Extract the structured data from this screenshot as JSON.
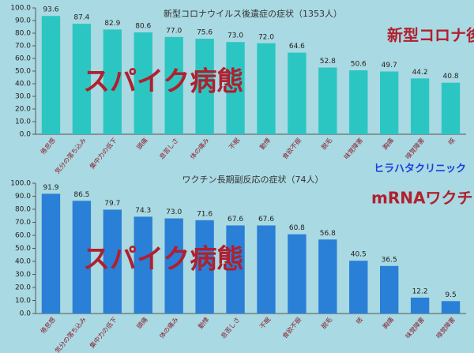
{
  "chart_data": [
    {
      "type": "bar",
      "title": "新型コロナウイルス後遺症の症状（1353人）",
      "categories": [
        "倦怠感",
        "気分の落ち込み",
        "集中力の低下",
        "頭痛",
        "息苦しさ",
        "体の痛み",
        "不眠",
        "動悸",
        "食欲不振",
        "脱毛",
        "味覚障害",
        "胸痛",
        "嗅覚障害",
        "咳"
      ],
      "values": [
        93.6,
        87.4,
        82.9,
        80.6,
        77.0,
        75.6,
        73.0,
        72.0,
        64.6,
        52.8,
        50.6,
        49.7,
        44.2,
        40.8
      ],
      "value_labels": [
        "93.6",
        "87.4",
        "82.9",
        "80.6",
        "77.0",
        "75.6",
        "73.0",
        "72.0",
        "64.6",
        "52.8",
        "50.6",
        "49.7",
        "44.2",
        "40.8"
      ],
      "color": "#2cc6c2",
      "ylim": [
        0,
        100
      ],
      "yticks": [
        {
          "value": 0,
          "label": "0.0"
        },
        {
          "value": 10,
          "label": "10.0"
        },
        {
          "value": 20,
          "label": "20.0"
        },
        {
          "value": 30,
          "label": "30.0"
        },
        {
          "value": 40,
          "label": "40.0"
        },
        {
          "value": 50,
          "label": "50.0"
        },
        {
          "value": 60,
          "label": "60.0"
        },
        {
          "value": 70,
          "label": "70.0"
        },
        {
          "value": 80,
          "label": "80.0"
        },
        {
          "value": 90,
          "label": "90.0"
        },
        {
          "value": 100,
          "label": "100.0"
        }
      ],
      "annotations": [
        "スパイク病態",
        "新型コロナ後遺症"
      ]
    },
    {
      "type": "bar",
      "title": "ワクチン長期副反応の症状（74人）",
      "categories": [
        "倦怠感",
        "気分の落ち込み",
        "集中力の低下",
        "頭痛",
        "体の痛み",
        "動悸",
        "息苦しさ",
        "不眠",
        "食欲不振",
        "脱毛",
        "咳",
        "胸痛",
        "味覚障害",
        "嗅覚障害"
      ],
      "values": [
        91.9,
        86.5,
        79.7,
        74.3,
        73.0,
        71.6,
        67.6,
        67.6,
        60.8,
        56.8,
        40.5,
        36.5,
        12.2,
        9.5
      ],
      "value_labels": [
        "91.9",
        "86.5",
        "79.7",
        "74.3",
        "73.0",
        "71.6",
        "67.6",
        "67.6",
        "60.8",
        "56.8",
        "40.5",
        "36.5",
        "12.2",
        "9.5"
      ],
      "color": "#2a7fd6",
      "ylim": [
        0,
        100
      ],
      "yticks": [
        {
          "value": 0,
          "label": "0.0"
        },
        {
          "value": 10,
          "label": "10.0"
        },
        {
          "value": 20,
          "label": "20.0"
        },
        {
          "value": 30,
          "label": "30.0"
        },
        {
          "value": 40,
          "label": "40.0"
        },
        {
          "value": 50,
          "label": "50.0"
        },
        {
          "value": 60,
          "label": "60.0"
        },
        {
          "value": 70,
          "label": "70.0"
        },
        {
          "value": 80,
          "label": "80.0"
        },
        {
          "value": 90,
          "label": "90.0"
        },
        {
          "value": 100,
          "label": "100.0"
        }
      ],
      "annotations": [
        "スパイク病態",
        "mRNAワクチン後遺症"
      ]
    }
  ],
  "source": "ヒラハタクリニック"
}
